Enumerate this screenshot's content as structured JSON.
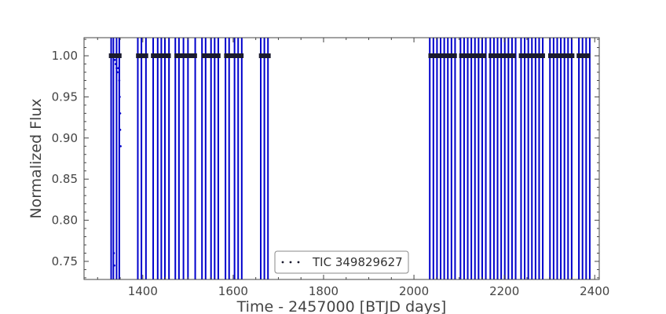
{
  "chart_data": {
    "type": "scatter",
    "xlabel": "Time - 2457000 [BTJD days]",
    "ylabel": "Normalized Flux",
    "xlim": [
      1270,
      2410
    ],
    "ylim": [
      0.728,
      1.022
    ],
    "x_ticks": [
      1400,
      1600,
      1800,
      2000,
      2200,
      2400
    ],
    "y_ticks": [
      0.75,
      0.8,
      0.85,
      0.9,
      0.95,
      1.0
    ],
    "x_tick_labels": [
      "1400",
      "1600",
      "1800",
      "2000",
      "2200",
      "2400"
    ],
    "y_tick_labels": [
      "0.75",
      "0.80",
      "0.85",
      "0.90",
      "0.95",
      "1.00"
    ],
    "grid": false,
    "legend": {
      "position": "bottom-center",
      "entries": [
        "TIC 349829627"
      ]
    },
    "series": [
      {
        "name": "TIC 349829627",
        "marker": "point",
        "color": "#1a1a2e",
        "errorbar_color": "#0000cc",
        "baseline_flux": 1.0,
        "observed_segments": [
          [
            1325,
            1353
          ],
          [
            1385,
            1412
          ],
          [
            1418,
            1462
          ],
          [
            1470,
            1520
          ],
          [
            1530,
            1572
          ],
          [
            1580,
            1623
          ],
          [
            1657,
            1683
          ],
          [
            2032,
            2095
          ],
          [
            2100,
            2160
          ],
          [
            2165,
            2225
          ],
          [
            2232,
            2290
          ],
          [
            2297,
            2355
          ],
          [
            2360,
            2390
          ]
        ],
        "errorbar_x": [
          1330,
          1335,
          1342,
          1348,
          1389,
          1397,
          1407,
          1423,
          1433,
          1441,
          1449,
          1458,
          1472,
          1480,
          1490,
          1500,
          1516,
          1531,
          1539,
          1551,
          1559,
          1567,
          1583,
          1591,
          1603,
          1611,
          1619,
          1661,
          1669,
          1677,
          2035,
          2043,
          2051,
          2059,
          2067,
          2075,
          2083,
          2091,
          2103,
          2111,
          2119,
          2127,
          2135,
          2143,
          2151,
          2159,
          2169,
          2177,
          2185,
          2193,
          2201,
          2209,
          2217,
          2225,
          2237,
          2245,
          2253,
          2261,
          2269,
          2277,
          2285,
          2301,
          2309,
          2317,
          2325,
          2333,
          2341,
          2349,
          2365,
          2373,
          2381,
          2389
        ],
        "dip_points": [
          [
            1338,
            0.995
          ],
          [
            1340,
            0.99
          ],
          [
            1342,
            0.985
          ],
          [
            1344,
            0.98
          ],
          [
            1346,
            0.985
          ],
          [
            1348,
            0.97
          ],
          [
            1349,
            0.95
          ],
          [
            1350,
            0.93
          ],
          [
            1350,
            0.91
          ],
          [
            1351,
            0.89
          ],
          [
            1336,
            0.76
          ],
          [
            1337,
            0.745
          ]
        ]
      }
    ]
  }
}
